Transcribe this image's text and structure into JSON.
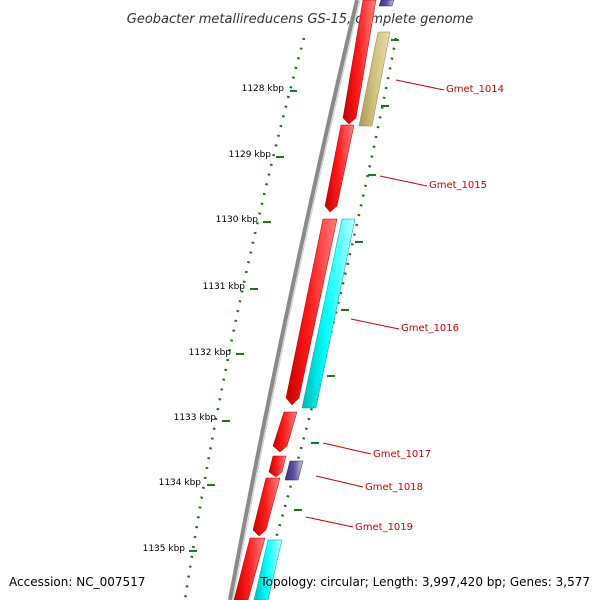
{
  "title": "Geobacter metallireducens GS-15, complete genome",
  "ticks": [
    "1128 kbp",
    "1129 kbp",
    "1130 kbp",
    "1131 kbp",
    "1132 kbp",
    "1133 kbp",
    "1134 kbp",
    "1135 kbp"
  ],
  "genes": [
    "Gmet_1014",
    "Gmet_1015",
    "Gmet_1016",
    "Gmet_1017",
    "Gmet_1018",
    "Gmet_1019"
  ],
  "footer": {
    "accession": "Accession: NC_007517",
    "summary": "Topology: circular; Length: 3,997,420 bp; Genes: 3,577"
  },
  "colors": {
    "backbone": "#8a8a8a",
    "forward_cds": "#ff0000",
    "reverse_cds": "#00ffff",
    "other_feature": "#c8bd7a",
    "rna_feature": "#4a3f8a",
    "dots": "#1a7a1a",
    "label": "#cc0000"
  }
}
